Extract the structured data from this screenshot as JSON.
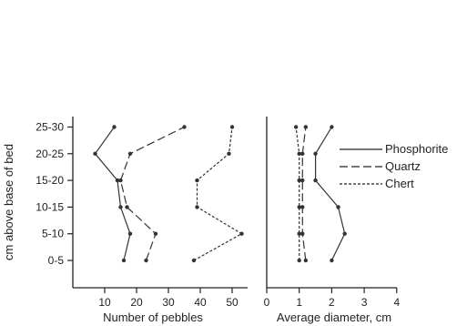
{
  "chart_data": [
    {
      "type": "line",
      "orientation": "horizontal",
      "ylabel": "cm above base of bed",
      "categories": [
        "0-5",
        "5-10",
        "10-15",
        "15-20",
        "20-25",
        "25-30"
      ],
      "xlabel": "Number of pebbles",
      "xlim": [
        0,
        55
      ],
      "xticks": [
        10,
        20,
        30,
        40,
        50
      ],
      "series": [
        {
          "name": "Phosphorite",
          "dash": "solid",
          "values": [
            16,
            18,
            15,
            14,
            7,
            13
          ]
        },
        {
          "name": "Quartz",
          "dash": "long-dash",
          "values": [
            23,
            26,
            17,
            15,
            18,
            35
          ]
        },
        {
          "name": "Chert",
          "dash": "short-dash",
          "values": [
            38,
            53,
            39,
            39,
            49,
            50
          ]
        }
      ]
    },
    {
      "type": "line",
      "orientation": "horizontal",
      "categories": [
        "0-5",
        "5-10",
        "10-15",
        "15-20",
        "20-25",
        "25-30"
      ],
      "xlabel": "Average diameter, cm",
      "xlim": [
        0,
        4
      ],
      "xticks": [
        0,
        1,
        2,
        3,
        4
      ],
      "series": [
        {
          "name": "Phosphorite",
          "dash": "solid",
          "values": [
            2.0,
            2.4,
            2.2,
            1.5,
            1.5,
            2.0
          ]
        },
        {
          "name": "Quartz",
          "dash": "long-dash",
          "values": [
            1.2,
            1.1,
            1.1,
            1.1,
            1.1,
            1.2
          ]
        },
        {
          "name": "Chert",
          "dash": "short-dash",
          "values": [
            1.0,
            1.0,
            1.0,
            1.0,
            1.0,
            0.9
          ]
        }
      ]
    }
  ],
  "legend": {
    "placement": "right",
    "items": [
      {
        "label": "Phosphorite",
        "dash": "solid"
      },
      {
        "label": "Quartz",
        "dash": "long-dash"
      },
      {
        "label": "Chert",
        "dash": "short-dash"
      }
    ]
  }
}
